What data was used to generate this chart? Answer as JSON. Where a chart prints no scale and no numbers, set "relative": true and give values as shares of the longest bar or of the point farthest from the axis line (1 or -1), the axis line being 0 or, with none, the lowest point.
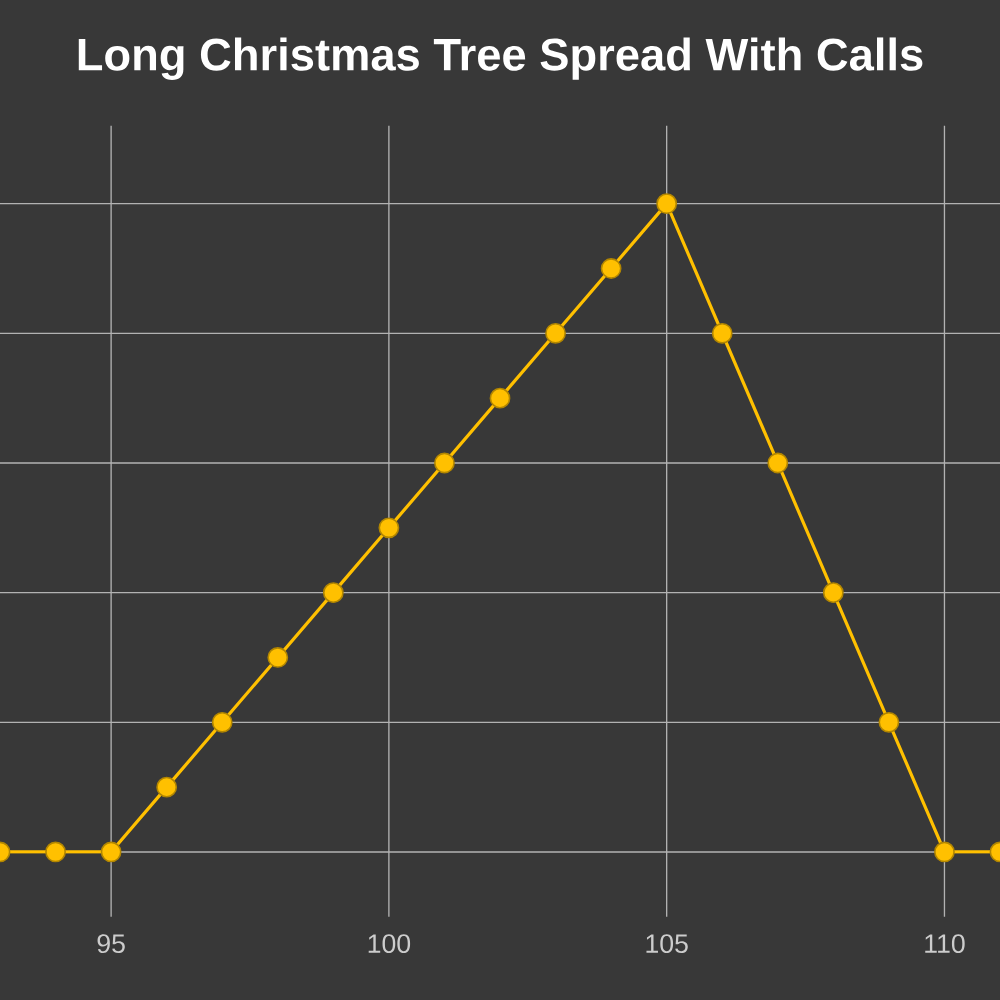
{
  "chart_data": {
    "type": "line",
    "title": "Long Christmas Tree Spread With Calls",
    "relative": true,
    "x": [
      93,
      94,
      95,
      96,
      97,
      98,
      99,
      100,
      101,
      102,
      103,
      104,
      105,
      106,
      107,
      108,
      109,
      110,
      111
    ],
    "series": [
      {
        "color": "#ffc000",
        "values": [
          0,
          0,
          0,
          0.1,
          0.2,
          0.3,
          0.4,
          0.5,
          0.6,
          0.7,
          0.8,
          0.9,
          1,
          0.8,
          0.6,
          0.4,
          0.2,
          0,
          0
        ]
      }
    ],
    "xlim": [
      93,
      111
    ],
    "xticks": [
      95,
      100,
      105,
      110
    ],
    "grid": true,
    "marker": "circle",
    "line_style": "solid"
  }
}
